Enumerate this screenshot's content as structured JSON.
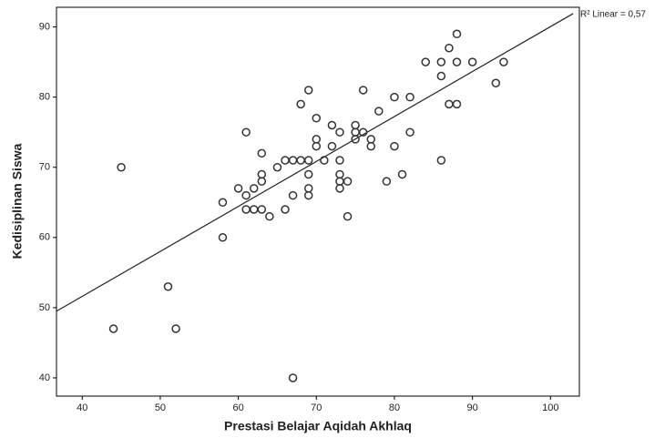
{
  "chart_data": {
    "type": "scatter",
    "x_label": "Prestasi Belajar Aqidah Akhlaq",
    "y_label": "Kedisiplinan Siswa",
    "annotation": "R² Linear = 0,57",
    "xlim": [
      36.7,
      103.7
    ],
    "ylim": [
      37.4,
      92.8
    ],
    "xticks": [
      40,
      50,
      60,
      70,
      80,
      90,
      100
    ],
    "yticks": [
      40,
      50,
      60,
      70,
      80,
      90
    ],
    "color": "#333333",
    "x": [
      45,
      44,
      51,
      52,
      58,
      58,
      60,
      61,
      61,
      61,
      62,
      62,
      63,
      63,
      63,
      63,
      64,
      65,
      66,
      66,
      67,
      67,
      67,
      68,
      68,
      69,
      69,
      69,
      69,
      69,
      70,
      70,
      70,
      71,
      72,
      72,
      73,
      73,
      73,
      73,
      73,
      74,
      74,
      75,
      75,
      75,
      76,
      76,
      77,
      77,
      78,
      79,
      80,
      80,
      81,
      82,
      82,
      84,
      86,
      86,
      86,
      87,
      87,
      88,
      88,
      88,
      90,
      93,
      94
    ],
    "y": [
      70,
      47,
      53,
      47,
      60,
      65,
      67,
      75,
      66,
      64,
      67,
      64,
      64,
      72,
      69,
      68,
      63,
      70,
      71,
      64,
      71,
      66,
      40,
      71,
      79,
      81,
      71,
      69,
      67,
      66,
      77,
      74,
      73,
      71,
      76,
      73,
      75,
      71,
      69,
      68,
      67,
      68,
      63,
      74,
      76,
      75,
      81,
      75,
      74,
      73,
      78,
      68,
      80,
      73,
      69,
      80,
      75,
      85,
      85,
      83,
      71,
      87,
      79,
      89,
      85,
      79,
      85,
      82,
      85
    ],
    "fit_line": {
      "x": [
        36.7,
        102.9
      ],
      "y": [
        49.5,
        91.9
      ]
    }
  }
}
